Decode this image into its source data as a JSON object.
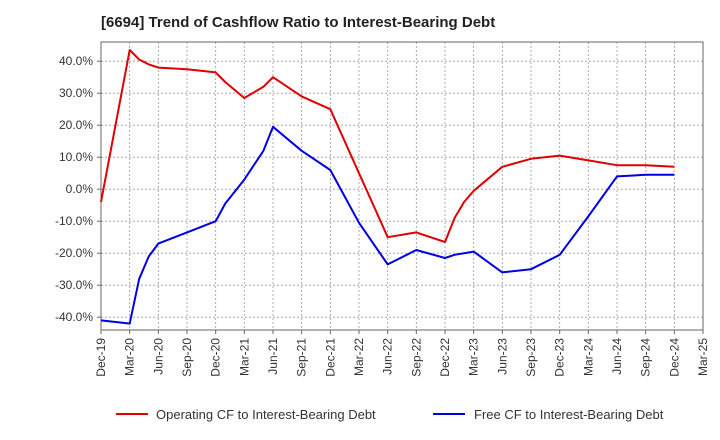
{
  "chart_data": {
    "type": "line",
    "title": "[6694]  Trend of Cashflow Ratio to Interest-Bearing Debt",
    "xlabel": "",
    "ylabel": "",
    "x_ticks": [
      "Dec-19",
      "Mar-20",
      "Jun-20",
      "Sep-20",
      "Dec-20",
      "Mar-21",
      "Jun-21",
      "Sep-21",
      "Dec-21",
      "Mar-22",
      "Jun-22",
      "Sep-22",
      "Dec-22",
      "Mar-23",
      "Jun-23",
      "Sep-23",
      "Dec-23",
      "Mar-24",
      "Jun-24",
      "Sep-24",
      "Dec-24",
      "Mar-25"
    ],
    "y_ticks": [
      {
        "value": 40,
        "label": "40.0%"
      },
      {
        "value": 30,
        "label": "30.0%"
      },
      {
        "value": 20,
        "label": "20.0%"
      },
      {
        "value": 10,
        "label": "10.0%"
      },
      {
        "value": 0,
        "label": "0.0%"
      },
      {
        "value": -10,
        "label": "-10.0%"
      },
      {
        "value": -20,
        "label": "-20.0%"
      },
      {
        "value": -30,
        "label": "-30.0%"
      },
      {
        "value": -40,
        "label": "-40.0%"
      }
    ],
    "xlim": [
      "Dec-19",
      "Mar-25"
    ],
    "ylim": [
      -44,
      46
    ],
    "grid": true,
    "legend_position": "bottom",
    "series": [
      {
        "name": "Operating CF to Interest-Bearing Debt",
        "color": "#e00000",
        "points": [
          [
            "Dec-19",
            -4.0
          ],
          [
            "Mar-20",
            43.5
          ],
          [
            "Apr-20",
            40.5
          ],
          [
            "May-20",
            39.0
          ],
          [
            "Jun-20",
            38.0
          ],
          [
            "Sep-20",
            37.5
          ],
          [
            "Dec-20",
            36.5
          ],
          [
            "Jan-21",
            33.5
          ],
          [
            "Mar-21",
            28.5
          ],
          [
            "May-21",
            32.0
          ],
          [
            "Jun-21",
            35.0
          ],
          [
            "Sep-21",
            29.0
          ],
          [
            "Dec-21",
            25.0
          ],
          [
            "Mar-22",
            5.0
          ],
          [
            "Jun-22",
            -15.0
          ],
          [
            "Sep-22",
            -13.5
          ],
          [
            "Dec-22",
            -16.5
          ],
          [
            "Jan-23",
            -9.0
          ],
          [
            "Feb-23",
            -4.0
          ],
          [
            "Mar-23",
            -0.5
          ],
          [
            "Jun-23",
            7.0
          ],
          [
            "Sep-23",
            9.5
          ],
          [
            "Dec-23",
            10.5
          ],
          [
            "Mar-24",
            9.0
          ],
          [
            "Jun-24",
            7.5
          ],
          [
            "Sep-24",
            7.5
          ],
          [
            "Dec-24",
            7.0
          ]
        ]
      },
      {
        "name": "Free CF to Interest-Bearing Debt",
        "color": "#0000e0",
        "points": [
          [
            "Dec-19",
            -41.0
          ],
          [
            "Mar-20",
            -42.0
          ],
          [
            "Apr-20",
            -28.0
          ],
          [
            "May-20",
            -21.0
          ],
          [
            "Jun-20",
            -17.0
          ],
          [
            "Sep-20",
            -13.5
          ],
          [
            "Dec-20",
            -10.0
          ],
          [
            "Jan-21",
            -4.5
          ],
          [
            "Mar-21",
            3.0
          ],
          [
            "May-21",
            12.0
          ],
          [
            "Jun-21",
            19.5
          ],
          [
            "Sep-21",
            12.0
          ],
          [
            "Dec-21",
            6.0
          ],
          [
            "Mar-22",
            -10.5
          ],
          [
            "Jun-22",
            -23.5
          ],
          [
            "Sep-22",
            -19.0
          ],
          [
            "Dec-22",
            -21.5
          ],
          [
            "Jan-23",
            -20.5
          ],
          [
            "Mar-23",
            -19.5
          ],
          [
            "Jun-23",
            -26.0
          ],
          [
            "Sep-23",
            -25.0
          ],
          [
            "Dec-23",
            -20.5
          ],
          [
            "Mar-24",
            -8.5
          ],
          [
            "Jun-24",
            4.0
          ],
          [
            "Sep-24",
            4.5
          ],
          [
            "Dec-24",
            4.5
          ]
        ]
      }
    ]
  }
}
